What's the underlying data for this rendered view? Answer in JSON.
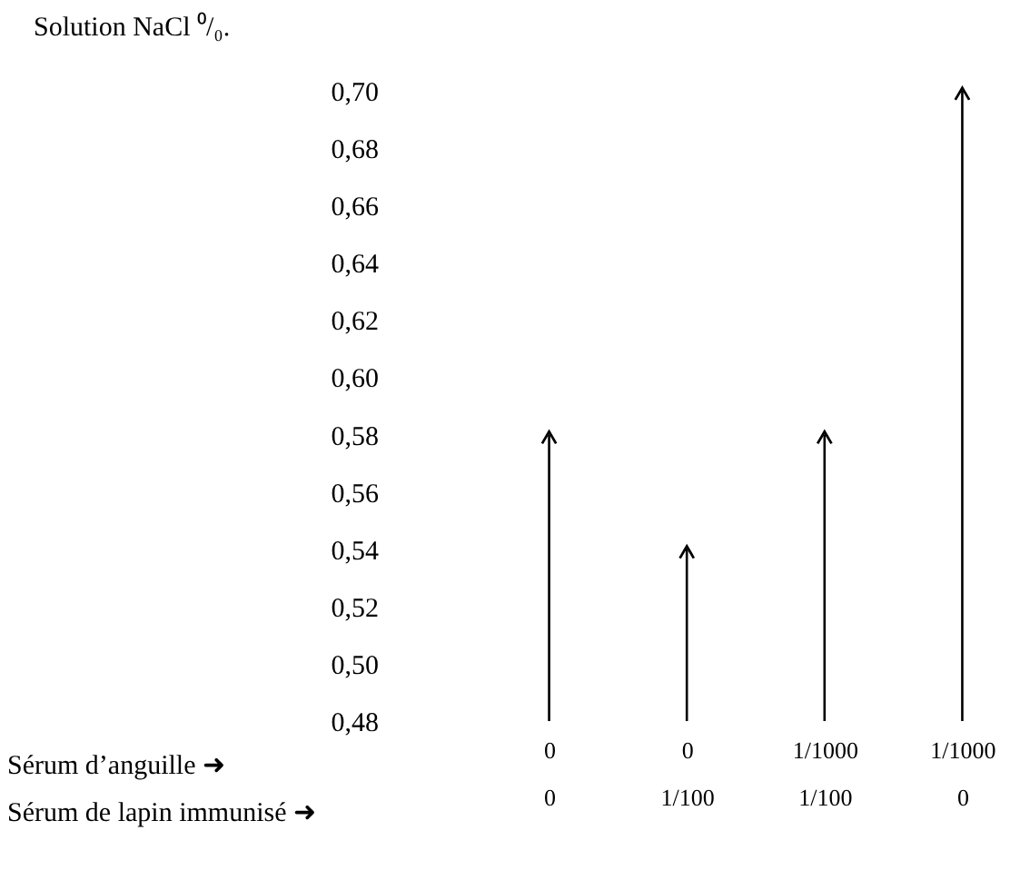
{
  "chart_data": {
    "type": "bar",
    "ylabel": "Solution NaCl ⁰/₀.",
    "categories": [
      "0\n0",
      "0\n1/100",
      "1/1000\n1/100",
      "1/1000\n0"
    ],
    "values": [
      0.58,
      0.54,
      0.58,
      0.7
    ],
    "color": "#000000",
    "ylim": [
      0.48,
      0.7
    ],
    "yticks": [
      {
        "value": 0.48,
        "label": "0,48"
      },
      {
        "value": 0.5,
        "label": "0,50"
      },
      {
        "value": 0.52,
        "label": "0,52"
      },
      {
        "value": 0.54,
        "label": "0,54"
      },
      {
        "value": 0.56,
        "label": "0,56"
      },
      {
        "value": 0.58,
        "label": "0,58"
      },
      {
        "value": 0.6,
        "label": "0,60"
      },
      {
        "value": 0.62,
        "label": "0,62"
      },
      {
        "value": 0.64,
        "label": "0,64"
      },
      {
        "value": 0.66,
        "label": "0,66"
      },
      {
        "value": 0.68,
        "label": "0,68"
      },
      {
        "value": 0.7,
        "label": "0,70"
      }
    ],
    "annotations": [
      "Sérum d’anguille ➜",
      "Sérum de lapin immunisé ➜"
    ],
    "grid": false
  }
}
